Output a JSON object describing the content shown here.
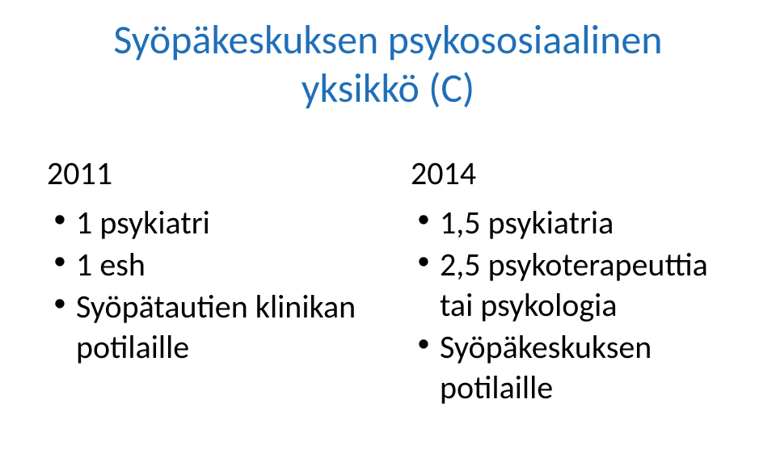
{
  "title_line1": "Syöpäkeskuksen psykososiaalinen",
  "title_line2": "yksikkö (C)",
  "left": {
    "year": "2011",
    "items": [
      "1 psykiatri",
      "1 esh",
      "Syöpätautien klinikan potilaille"
    ]
  },
  "right": {
    "year": "2014",
    "items": [
      "1,5 psykiatria",
      "2,5 psykoterapeuttia tai psykologia",
      "Syöpäkeskuksen potilaille"
    ]
  },
  "colors": {
    "title": "#1f6fb8",
    "text": "#000000",
    "background": "#ffffff"
  },
  "fonts": {
    "title_size": 50,
    "body_size": 40,
    "family": "Calibri"
  }
}
